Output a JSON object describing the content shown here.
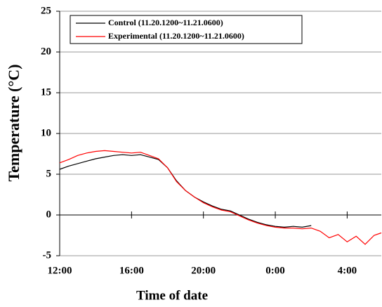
{
  "chart_data": {
    "type": "line",
    "x_label": "Time of date",
    "y_label": "Temperature (°C)",
    "x": [
      0,
      0.5,
      1,
      1.5,
      2,
      2.5,
      3,
      3.5,
      4,
      4.5,
      5,
      5.5,
      6,
      6.5,
      7,
      7.5,
      8,
      8.5,
      9,
      9.5,
      10,
      10.5,
      11,
      11.5,
      12,
      12.5,
      13,
      13.5,
      14,
      14.5,
      15,
      15.5,
      16,
      16.5,
      17,
      17.5,
      17.9
    ],
    "series": [
      {
        "name": "Control (11.20.1200~11.21.0600)",
        "color": "#000000",
        "values": [
          5.6,
          6.0,
          6.3,
          6.6,
          6.9,
          7.1,
          7.3,
          7.4,
          7.3,
          7.4,
          7.1,
          6.8,
          5.8,
          4.2,
          3.0,
          2.2,
          1.6,
          1.1,
          0.7,
          0.5,
          0.0,
          -0.5,
          -0.9,
          -1.2,
          -1.4,
          -1.5,
          -1.4,
          -1.5,
          -1.3,
          null,
          null,
          null,
          null,
          null,
          null,
          null,
          null
        ]
      },
      {
        "name": "Experimental (11.20.1200~11.21.0600)",
        "color": "#ff0000",
        "values": [
          6.4,
          6.8,
          7.3,
          7.6,
          7.8,
          7.9,
          7.8,
          7.7,
          7.6,
          7.7,
          7.3,
          6.9,
          5.8,
          4.1,
          3.0,
          2.2,
          1.5,
          1.0,
          0.6,
          0.4,
          -0.1,
          -0.6,
          -1.0,
          -1.3,
          -1.5,
          -1.6,
          -1.6,
          -1.7,
          -1.6,
          -2.0,
          -2.8,
          -2.4,
          -3.3,
          -2.6,
          -3.6,
          -2.5,
          -2.2
        ]
      }
    ],
    "xlim": [
      0,
      17.9
    ],
    "xticks": [
      {
        "value": 0,
        "label": "12:00"
      },
      {
        "value": 4,
        "label": "16:00"
      },
      {
        "value": 8,
        "label": "20:00"
      },
      {
        "value": 12,
        "label": "0:00"
      },
      {
        "value": 16,
        "label": "4:00"
      }
    ],
    "ylim": [
      -5,
      25
    ],
    "yticks": [
      -5,
      0,
      5,
      10,
      15,
      20,
      25
    ],
    "grid": true,
    "legend": "upper left"
  }
}
